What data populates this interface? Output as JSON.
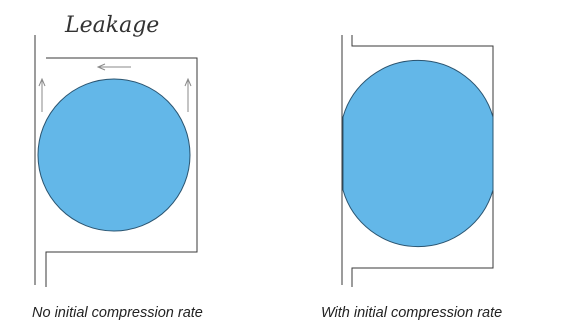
{
  "left_panel": {
    "annotation": "Leakage",
    "caption": "No initial compression rate"
  },
  "right_panel": {
    "caption": "With initial compression rate"
  },
  "colors": {
    "seal_fill": "#63b7e8",
    "seal_stroke": "#2a5470",
    "line": "#3a3a3a",
    "arrow": "#8a8a8a"
  }
}
